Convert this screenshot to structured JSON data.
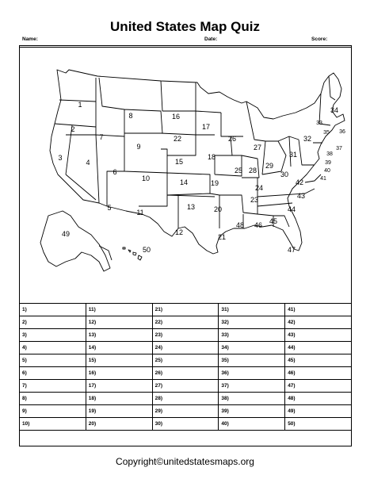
{
  "header": {
    "title": "United States Map Quiz",
    "name_label": "Name:",
    "date_label": "Date:",
    "score_label": "Score:"
  },
  "map": {
    "state_numbers": [
      "1",
      "2",
      "3",
      "4",
      "5",
      "6",
      "7",
      "8",
      "9",
      "10",
      "11",
      "12",
      "13",
      "14",
      "15",
      "16",
      "17",
      "18",
      "19",
      "20",
      "21",
      "22",
      "23",
      "24",
      "25",
      "26",
      "27",
      "28",
      "29",
      "30",
      "31",
      "32",
      "33",
      "34",
      "35",
      "36",
      "37",
      "38",
      "39",
      "40",
      "41",
      "42",
      "43",
      "44",
      "45",
      "46",
      "47",
      "48",
      "49",
      "50"
    ]
  },
  "answer_grid": {
    "rows": [
      [
        "1)",
        "11)",
        "21)",
        "31)",
        "41)"
      ],
      [
        "2)",
        "12)",
        "22)",
        "32)",
        "42)"
      ],
      [
        "3)",
        "13)",
        "23)",
        "33)",
        "43)"
      ],
      [
        "4)",
        "14)",
        "24)",
        "34)",
        "44)"
      ],
      [
        "5)",
        "15)",
        "25)",
        "35)",
        "45)"
      ],
      [
        "6)",
        "16)",
        "26)",
        "36)",
        "46)"
      ],
      [
        "7)",
        "17)",
        "27)",
        "37)",
        "47)"
      ],
      [
        "8)",
        "18)",
        "28)",
        "38)",
        "48)"
      ],
      [
        "9)",
        "19)",
        "29)",
        "39)",
        "49)"
      ],
      [
        "10)",
        "20)",
        "30)",
        "40)",
        "50)"
      ]
    ]
  },
  "footer": {
    "copyright": "Copyright©unitedstatesmaps.org"
  }
}
